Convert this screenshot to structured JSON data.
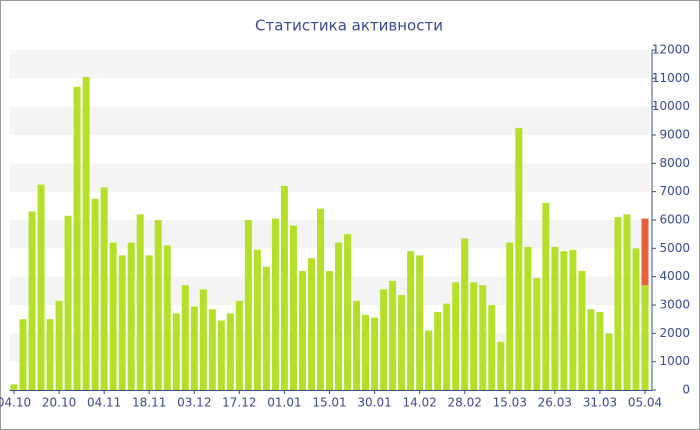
{
  "chart_data": {
    "type": "bar",
    "title": "Статистика активности",
    "categories": [
      "04.10",
      null,
      null,
      null,
      null,
      "20.10",
      null,
      null,
      null,
      null,
      "04.11",
      null,
      null,
      null,
      null,
      "18.11",
      null,
      null,
      null,
      null,
      "03.12",
      null,
      null,
      null,
      null,
      "17.12",
      null,
      null,
      null,
      null,
      "01.01",
      null,
      null,
      null,
      null,
      "15.01",
      null,
      null,
      null,
      null,
      "30.01",
      null,
      null,
      null,
      null,
      "14.02",
      null,
      null,
      null,
      null,
      "28.02",
      null,
      null,
      null,
      null,
      "15.03",
      null,
      null,
      null,
      null,
      "26.03",
      null,
      null,
      null,
      null,
      "31.03",
      null,
      null,
      null,
      null,
      "05.04"
    ],
    "series": [
      {
        "color": "#b5e02a",
        "values": [
          200,
          2500,
          6300,
          7250,
          2500,
          3150,
          6150,
          10700,
          11050,
          6750,
          7150,
          5200,
          4750,
          5200,
          6200,
          4750,
          6000,
          5100,
          2700,
          3700,
          2950,
          3550,
          2850,
          2450,
          2700,
          3150,
          6000,
          4950,
          4350,
          6050,
          7200,
          5800,
          4200,
          4650,
          6400,
          4200,
          5200,
          5500,
          3150,
          2650,
          2550,
          3550,
          3850,
          3350,
          4900,
          4750,
          2100,
          2750,
          3050,
          3800,
          5350,
          3800,
          3700,
          3000,
          1700,
          5200,
          9250,
          5050,
          3950,
          6600,
          5050,
          4900,
          4950,
          4200,
          2850,
          2750,
          2000,
          6100,
          6200,
          5000,
          3700
        ]
      },
      {
        "color": "#e8603a",
        "values": [
          null,
          null,
          null,
          null,
          null,
          null,
          null,
          null,
          null,
          null,
          null,
          null,
          null,
          null,
          null,
          null,
          null,
          null,
          null,
          null,
          null,
          null,
          null,
          null,
          null,
          null,
          null,
          null,
          null,
          null,
          null,
          null,
          null,
          null,
          null,
          null,
          null,
          null,
          null,
          null,
          null,
          null,
          null,
          null,
          null,
          null,
          null,
          null,
          null,
          null,
          null,
          null,
          null,
          null,
          null,
          null,
          null,
          null,
          null,
          null,
          null,
          null,
          null,
          null,
          null,
          null,
          null,
          null,
          null,
          null,
          2350
        ]
      }
    ],
    "stacked": true,
    "ylim": [
      0,
      12000
    ],
    "yticks": [
      0,
      1000,
      2000,
      3000,
      4000,
      5000,
      6000,
      7000,
      8000,
      9000,
      10000,
      11000,
      12000
    ],
    "grid": true
  }
}
